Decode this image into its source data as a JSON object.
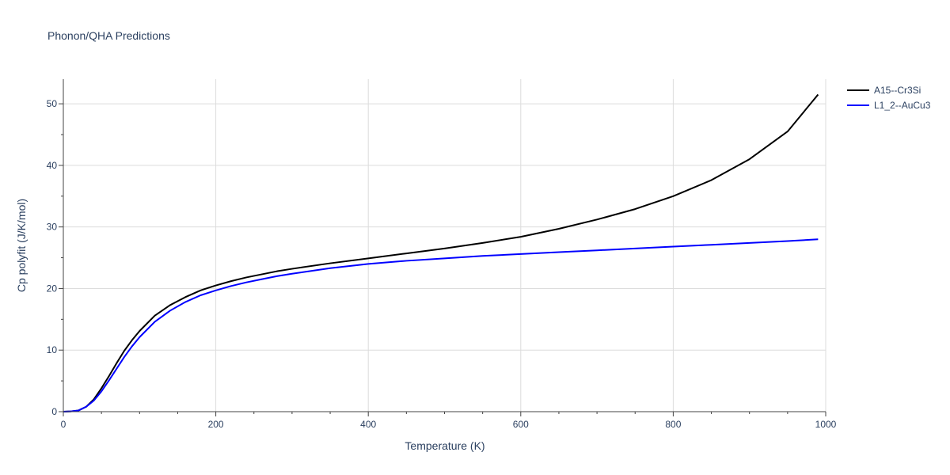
{
  "chart_data": {
    "type": "line",
    "title": "Phonon/QHA Predictions",
    "xlabel": "Temperature (K)",
    "ylabel": "Cp polyfit (J/K/mol)",
    "xlim": [
      0,
      1000
    ],
    "ylim": [
      0,
      54
    ],
    "xticks": [
      0,
      200,
      400,
      600,
      800,
      1000
    ],
    "yticks": [
      0,
      10,
      20,
      30,
      40,
      50
    ],
    "grid": true,
    "legend_position": "top-right",
    "series": [
      {
        "name": "A15--Cr3Si",
        "color": "#000000",
        "x": [
          0,
          10,
          20,
          30,
          40,
          50,
          60,
          70,
          80,
          90,
          100,
          120,
          140,
          160,
          180,
          200,
          220,
          240,
          260,
          280,
          300,
          350,
          400,
          450,
          500,
          550,
          600,
          650,
          700,
          750,
          800,
          850,
          900,
          950,
          990
        ],
        "y": [
          0,
          0.05,
          0.2,
          0.8,
          2.0,
          3.8,
          5.8,
          7.9,
          9.9,
          11.6,
          13.1,
          15.6,
          17.3,
          18.6,
          19.7,
          20.5,
          21.2,
          21.8,
          22.3,
          22.8,
          23.2,
          24.1,
          24.9,
          25.7,
          26.5,
          27.4,
          28.4,
          29.7,
          31.2,
          32.9,
          35.0,
          37.6,
          41.0,
          45.5,
          51.5
        ]
      },
      {
        "name": "L1_2--AuCu3",
        "color": "#0000ff",
        "x": [
          0,
          10,
          20,
          30,
          40,
          50,
          60,
          70,
          80,
          90,
          100,
          120,
          140,
          160,
          180,
          200,
          220,
          240,
          260,
          280,
          300,
          350,
          400,
          450,
          500,
          550,
          600,
          650,
          700,
          750,
          800,
          850,
          900,
          950,
          990
        ],
        "y": [
          0,
          0.05,
          0.2,
          0.8,
          1.8,
          3.3,
          5.1,
          7.0,
          8.9,
          10.6,
          12.1,
          14.6,
          16.4,
          17.8,
          18.9,
          19.7,
          20.4,
          21.0,
          21.5,
          22.0,
          22.4,
          23.3,
          24.0,
          24.5,
          24.9,
          25.3,
          25.6,
          25.9,
          26.2,
          26.5,
          26.8,
          27.1,
          27.4,
          27.7,
          28.0
        ]
      }
    ]
  }
}
